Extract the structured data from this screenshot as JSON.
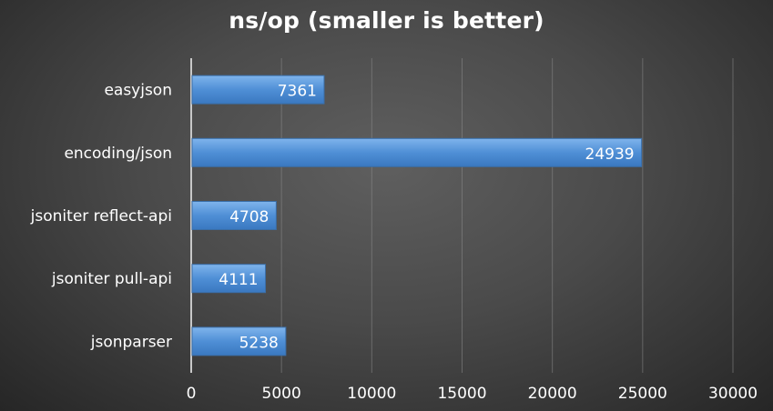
{
  "chart_data": {
    "type": "bar",
    "orientation": "horizontal",
    "title": "ns/op (smaller is better)",
    "categories": [
      "easyjson",
      "encoding/json",
      "jsoniter reflect-api",
      "jsoniter pull-api",
      "jsonparser"
    ],
    "values": [
      7361,
      24939,
      4708,
      4111,
      5238
    ],
    "xlim": [
      0,
      30000
    ],
    "xticks": [
      "0",
      "5000",
      "10000",
      "15000",
      "20000",
      "25000",
      "30000"
    ],
    "grid": true,
    "legend": "none",
    "bar_color": "#4f8fd6",
    "data_labels": true
  }
}
